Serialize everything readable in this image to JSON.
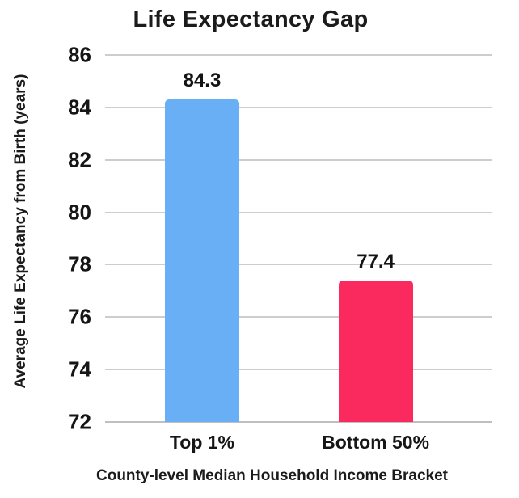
{
  "chart_data": {
    "type": "bar",
    "title": "Life Expectancy Gap",
    "xlabel": "County-level Median Household Income Bracket",
    "ylabel": "Average Life Expectancy from Birth (years)",
    "categories": [
      "Top 1%",
      "Bottom 50%"
    ],
    "values": [
      84.3,
      77.4
    ],
    "value_labels": [
      "84.3",
      "77.4"
    ],
    "bar_colors": [
      "#69AFF5",
      "#FA2A5E"
    ],
    "ylim": [
      72,
      86
    ],
    "yticks": [
      72,
      74,
      76,
      78,
      80,
      82,
      84,
      86
    ],
    "grid": "horizontal",
    "legend": "none",
    "colors": {
      "text": "#1b1b1b",
      "gridline": "#cdcdcd",
      "axis_line": "#bfbfbf",
      "background": "#ffffff"
    }
  }
}
